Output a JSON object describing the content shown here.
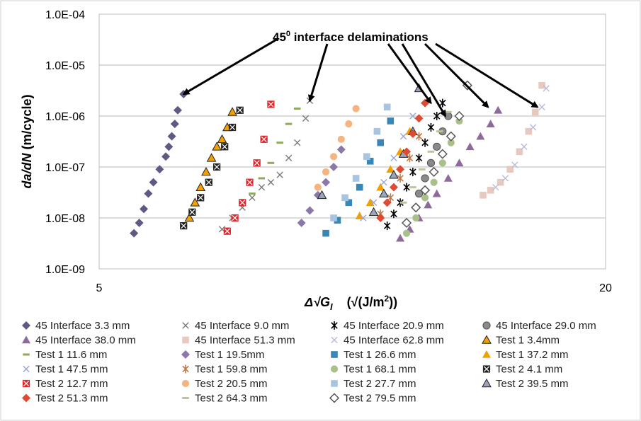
{
  "chart_data": {
    "type": "scatter",
    "title": "",
    "xlabel_parts": [
      "Δ√G",
      "I",
      "(√(J/m",
      "2",
      "))"
    ],
    "ylabel_parts": [
      "da/dN",
      " (m/cycle)"
    ],
    "x_scale": "log",
    "y_scale": "log",
    "xlim": [
      5,
      20
    ],
    "ylim": [
      1e-09,
      0.0001
    ],
    "x_ticks": [
      "5",
      "20"
    ],
    "y_ticks": [
      "1.0E-04",
      "1.0E-05",
      "1.0E-06",
      "1.0E-07",
      "1.0E-08",
      "1.0E-09"
    ],
    "grid": "horizontal",
    "legend_position": "bottom",
    "annotation": {
      "text_main": "45",
      "text_sup": "0",
      "text_rest": " interface delaminations",
      "arrow_targets": [
        [
          6.3,
          2.7e-06
        ],
        [
          8.9,
          2e-06
        ],
        [
          12.4,
          1.8e-06
        ],
        [
          12.9,
          1e-06
        ],
        [
          14.5,
          1.5e-06
        ],
        [
          16.6,
          1.5e-06
        ]
      ]
    },
    "series": [
      {
        "name": "45 Interface 3.3 mm",
        "color": "#5e5a82",
        "marker": "diamond",
        "x": [
          5.5,
          5.58,
          5.65,
          5.72,
          5.8,
          5.9,
          6.0,
          6.05,
          6.1,
          6.15,
          6.2,
          6.3
        ],
        "y": [
          5e-09,
          8e-09,
          1.5e-08,
          3e-08,
          5e-08,
          9e-08,
          1.6e-07,
          2.5e-07,
          4e-07,
          7e-07,
          1.3e-06,
          2.7e-06
        ]
      },
      {
        "name": "45 Interface 9.0 mm",
        "color": "#7a7a7a",
        "marker": "x",
        "x": [
          7.0,
          7.2,
          7.4,
          7.6,
          7.8,
          8.0,
          8.2,
          8.4,
          8.6,
          8.8,
          8.9
        ],
        "y": [
          6e-09,
          1e-08,
          1.6e-08,
          2.5e-08,
          4e-08,
          5e-08,
          7e-08,
          1.5e-07,
          3e-07,
          9e-07,
          2e-06
        ]
      },
      {
        "name": "45 Interface 20.9 mm",
        "color": "#000000",
        "marker": "star",
        "x": [
          11.0,
          11.2,
          11.4,
          11.6,
          11.8,
          12.0,
          12.2,
          12.4,
          12.6,
          12.8
        ],
        "y": [
          7e-09,
          1.2e-08,
          2e-08,
          4e-08,
          8e-08,
          1.5e-07,
          3e-07,
          6e-07,
          1e-06,
          1.8e-06
        ]
      },
      {
        "name": "45 Interface 29.0 mm",
        "color": "#8a8a8a",
        "marker": "circle-outline",
        "x": [
          12.0,
          12.2,
          12.4,
          12.6,
          12.8,
          13.0
        ],
        "y": [
          3e-08,
          6e-08,
          1.2e-07,
          2.5e-07,
          5e-07,
          1e-06
        ]
      },
      {
        "name": "45 Interface 38.0 mm",
        "color": "#8e6a9a",
        "marker": "triangle",
        "x": [
          11.4,
          11.7,
          12.0,
          12.3,
          12.6,
          13.0,
          13.4,
          13.8,
          14.2,
          14.6,
          14.9
        ],
        "y": [
          4e-09,
          6e-09,
          1e-08,
          1.8e-08,
          3e-08,
          6e-08,
          1.2e-07,
          2.5e-07,
          4e-07,
          7e-07,
          1.3e-06
        ]
      },
      {
        "name": "45 Interface 51.3 mm",
        "color": "#e8c9c0",
        "marker": "square",
        "x": [
          14.3,
          14.6,
          15.0,
          15.4,
          15.8,
          16.2,
          16.5,
          16.8
        ],
        "y": [
          2.8e-08,
          3.5e-08,
          5e-08,
          9e-08,
          2e-07,
          5e-07,
          1.2e-06,
          4e-06
        ]
      },
      {
        "name": "45 Interface 62.8 mm",
        "color": "#b8bcd6",
        "marker": "x",
        "x": [
          14.8,
          15.2,
          15.6,
          16.0,
          16.4,
          16.8,
          17.0
        ],
        "y": [
          4e-08,
          6e-08,
          1.1e-07,
          2.5e-07,
          6e-07,
          1.5e-06,
          3.5e-06
        ]
      },
      {
        "name": "Test 1 3.4mm",
        "color": "#f2a000",
        "marker": "triangle-outline",
        "x": [
          6.4,
          6.5,
          6.6,
          6.7,
          6.8,
          6.9,
          7.0,
          7.1,
          7.2
        ],
        "y": [
          1e-08,
          2e-08,
          4e-08,
          8e-08,
          1.5e-07,
          2.5e-07,
          3.5e-07,
          6e-07,
          1.2e-06
        ]
      },
      {
        "name": "Test 1 11.6 mm",
        "color": "#8faa5c",
        "marker": "dash",
        "x": [
          7.6,
          7.8,
          8.0,
          8.2,
          8.4,
          8.6
        ],
        "y": [
          3e-08,
          6e-08,
          1.2e-07,
          3e-07,
          7e-07,
          1.4e-06
        ]
      },
      {
        "name": "Test 1 19.5mm",
        "color": "#8b78a8",
        "marker": "diamond",
        "x": [
          8.7,
          8.9,
          9.1,
          9.3,
          9.5,
          9.7
        ],
        "y": [
          8e-09,
          1.4e-08,
          2.8e-08,
          5e-08,
          1e-07,
          2.2e-07
        ]
      },
      {
        "name": "Test 1 26.6 mm",
        "color": "#3a87b5",
        "marker": "square",
        "x": [
          9.3,
          9.6,
          9.9,
          10.2,
          10.5,
          10.8,
          11.1
        ],
        "y": [
          5e-09,
          9e-09,
          2e-08,
          4e-08,
          1.3e-07,
          3e-07,
          8e-07
        ]
      },
      {
        "name": "Test 1 37.2 mm",
        "color": "#f2a000",
        "marker": "triangle",
        "x": [
          10.2,
          10.5,
          10.8,
          11.1,
          11.4,
          11.7
        ],
        "y": [
          1.1e-08,
          2e-08,
          4e-08,
          9e-08,
          2e-07,
          5e-07
        ]
      },
      {
        "name": "Test 1 47.5 mm",
        "color": "#9aa6d2",
        "marker": "x",
        "x": [
          10.3,
          10.6,
          10.9,
          11.2,
          11.5,
          11.8
        ],
        "y": [
          1e-08,
          2e-08,
          5e-08,
          1.5e-07,
          4e-07,
          1e-06
        ]
      },
      {
        "name": "Test 1 59.8 mm",
        "color": "#c07a4a",
        "marker": "star",
        "x": [
          10.8,
          11.1,
          11.4,
          11.7,
          12.0
        ],
        "y": [
          1.2e-08,
          2.5e-08,
          6e-08,
          1.5e-07,
          4e-07
        ]
      },
      {
        "name": "Test 1 68.1 mm",
        "color": "#a9c08b",
        "marker": "circle",
        "x": [
          11.6,
          11.9,
          12.2,
          12.5,
          12.8,
          13.1,
          13.4
        ],
        "y": [
          5e-09,
          1e-08,
          2.5e-08,
          5e-08,
          1.2e-07,
          3e-07,
          8e-07
        ]
      },
      {
        "name": "Test 2 4.1 mm",
        "color": "#222222",
        "marker": "square-x",
        "x": [
          6.3,
          6.45,
          6.6,
          6.75,
          6.9,
          7.05,
          7.2,
          7.35
        ],
        "y": [
          7e-09,
          1.3e-08,
          2.5e-08,
          5e-08,
          1e-07,
          2.5e-07,
          6e-07,
          1.3e-06
        ]
      },
      {
        "name": "Test 2 12.7 mm",
        "color": "#e0262d",
        "marker": "square-x",
        "x": [
          7.1,
          7.25,
          7.4,
          7.55,
          7.7,
          7.85,
          8.0
        ],
        "y": [
          5.5e-09,
          1e-08,
          2e-08,
          5e-08,
          1.2e-07,
          3.5e-07,
          1.7e-06
        ]
      },
      {
        "name": "Test 2 20.5 mm",
        "color": "#f5b482",
        "marker": "circle",
        "x": [
          9.1,
          9.3,
          9.5,
          9.7,
          9.9,
          10.1
        ],
        "y": [
          4e-08,
          8e-08,
          1.6e-07,
          3.5e-07,
          7e-07,
          1.4e-06
        ]
      },
      {
        "name": "Test 2 27.7 mm",
        "color": "#a8c4e0",
        "marker": "square",
        "x": [
          9.5,
          9.8,
          10.1,
          10.4,
          10.7,
          11.0
        ],
        "y": [
          1e-08,
          2.5e-08,
          6e-08,
          1.6e-07,
          5e-07,
          1.5e-06
        ]
      },
      {
        "name": "Test 2 39.5 mm",
        "color": "#9aa4bc",
        "marker": "triangle-outline",
        "x": [
          9.2,
          10.6,
          10.9,
          11.2,
          11.5,
          11.8,
          12.0
        ],
        "y": [
          2.8e-08,
          1.3e-08,
          3e-08,
          7e-08,
          1.8e-07,
          5e-07,
          3.5e-06
        ]
      },
      {
        "name": "Test 2 51.3 mm",
        "color": "#e04a30",
        "marker": "diamond",
        "x": [
          10.8,
          11.0,
          11.2,
          11.4,
          11.6,
          11.8,
          12.0,
          12.2
        ],
        "y": [
          1e-08,
          2e-08,
          4e-08,
          9e-08,
          2e-07,
          4.5e-07,
          9e-07,
          1.8e-06
        ]
      },
      {
        "name": "Test 2 64.3 mm",
        "color": "#b8c89a",
        "marker": "dash",
        "x": [
          11.5,
          11.8,
          12.1,
          12.4,
          12.7,
          13.0
        ],
        "y": [
          2e-08,
          4e-08,
          9e-08,
          2e-07,
          5e-07,
          1.2e-06
        ]
      },
      {
        "name": "Test 2 79.5 mm",
        "color": "#555555",
        "marker": "diamond-outline",
        "x": [
          11.6,
          11.9,
          12.2,
          12.5,
          12.8,
          13.1,
          13.4,
          13.7
        ],
        "y": [
          8e-09,
          1.6e-08,
          3.5e-08,
          8e-08,
          1.8e-07,
          4e-07,
          1e-06,
          4e-06
        ]
      }
    ]
  }
}
